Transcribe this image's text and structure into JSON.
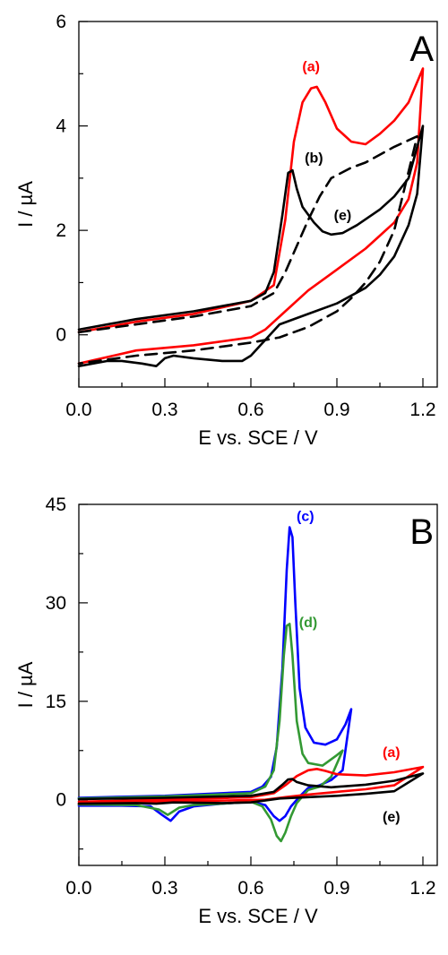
{
  "chart_data": [
    {
      "type": "line",
      "panel_label": "A",
      "xlabel": "E vs. SCE / V",
      "ylabel": "I / µA",
      "xlim": [
        0.0,
        1.25
      ],
      "ylim": [
        -1.0,
        6.0
      ],
      "xticks": [
        0.0,
        0.3,
        0.6,
        0.9,
        1.2
      ],
      "xtick_labels": [
        "0.0",
        "0.3",
        "0.6",
        "0.9",
        "1.2"
      ],
      "yticks": [
        0,
        2,
        4,
        6
      ],
      "ytick_labels": [
        "0",
        "2",
        "4",
        "6"
      ],
      "grid": false,
      "series": [
        {
          "name": "(a)",
          "color": "#ff0000",
          "dash": "solid",
          "x": [
            0.0,
            0.2,
            0.4,
            0.6,
            0.68,
            0.72,
            0.75,
            0.78,
            0.81,
            0.83,
            0.86,
            0.9,
            0.95,
            1.0,
            1.05,
            1.1,
            1.15,
            1.2,
            1.18,
            1.15,
            1.1,
            1.05,
            1.0,
            0.9,
            0.8,
            0.72,
            0.65,
            0.6,
            0.4,
            0.2,
            0.0
          ],
          "y": [
            0.05,
            0.25,
            0.4,
            0.65,
            0.95,
            2.2,
            3.7,
            4.45,
            4.72,
            4.75,
            4.45,
            3.95,
            3.7,
            3.65,
            3.85,
            4.1,
            4.45,
            5.1,
            3.3,
            2.6,
            2.15,
            1.9,
            1.65,
            1.25,
            0.85,
            0.45,
            0.1,
            -0.05,
            -0.2,
            -0.3,
            -0.55
          ]
        },
        {
          "name": "(b)",
          "color": "#000000",
          "dash": "dashed",
          "x": [
            0.0,
            0.2,
            0.4,
            0.6,
            0.68,
            0.72,
            0.76,
            0.8,
            0.84,
            0.88,
            0.95,
            1.0,
            1.1,
            1.18,
            1.1,
            1.05,
            1.0,
            0.95,
            0.9,
            0.85,
            0.8,
            0.75,
            0.7,
            0.6,
            0.4,
            0.2,
            0.0
          ],
          "y": [
            0.05,
            0.2,
            0.35,
            0.55,
            0.8,
            1.2,
            1.7,
            2.2,
            2.65,
            3.0,
            3.2,
            3.3,
            3.6,
            3.8,
            2.0,
            1.4,
            1.0,
            0.7,
            0.45,
            0.3,
            0.15,
            0.05,
            -0.05,
            -0.15,
            -0.3,
            -0.4,
            -0.55
          ]
        },
        {
          "name": "(e)",
          "color": "#000000",
          "dash": "solid",
          "x": [
            0.0,
            0.2,
            0.4,
            0.6,
            0.65,
            0.68,
            0.71,
            0.73,
            0.745,
            0.76,
            0.78,
            0.82,
            0.85,
            0.88,
            0.92,
            0.97,
            1.05,
            1.1,
            1.15,
            1.2,
            1.18,
            1.15,
            1.1,
            1.05,
            1.0,
            0.9,
            0.8,
            0.7,
            0.6,
            0.57,
            0.5,
            0.4,
            0.33,
            0.3,
            0.27,
            0.22,
            0.15,
            0.1,
            0.0
          ],
          "y": [
            0.1,
            0.3,
            0.45,
            0.65,
            0.8,
            1.2,
            2.3,
            3.1,
            3.15,
            2.8,
            2.45,
            2.15,
            1.98,
            1.92,
            1.95,
            2.1,
            2.4,
            2.65,
            3.0,
            4.0,
            2.7,
            2.1,
            1.5,
            1.15,
            0.9,
            0.6,
            0.4,
            0.2,
            -0.4,
            -0.5,
            -0.5,
            -0.45,
            -0.4,
            -0.45,
            -0.6,
            -0.55,
            -0.5,
            -0.5,
            -0.6
          ]
        }
      ],
      "annotations": [
        {
          "text": "(a)",
          "x": 0.81,
          "y": 5.05,
          "color": "#ff0000"
        },
        {
          "text": "(b)",
          "x": 0.82,
          "y": 3.3,
          "color": "#000000"
        },
        {
          "text": "(e)",
          "x": 0.92,
          "y": 2.2,
          "color": "#000000"
        }
      ]
    },
    {
      "type": "line",
      "panel_label": "B",
      "xlabel": "E vs. SCE / V",
      "ylabel": "I / µA",
      "xlim": [
        0.0,
        1.25
      ],
      "ylim": [
        -10.0,
        45.0
      ],
      "xticks": [
        0.0,
        0.3,
        0.6,
        0.9,
        1.2
      ],
      "xtick_labels": [
        "0.0",
        "0.3",
        "0.6",
        "0.9",
        "1.2"
      ],
      "yticks": [
        0,
        15,
        30,
        45
      ],
      "ytick_labels": [
        "0",
        "15",
        "30",
        "45"
      ],
      "grid": false,
      "series": [
        {
          "name": "(c)",
          "color": "#0000ff",
          "dash": "solid",
          "x": [
            0.0,
            0.3,
            0.6,
            0.64,
            0.67,
            0.69,
            0.71,
            0.725,
            0.735,
            0.745,
            0.755,
            0.77,
            0.79,
            0.82,
            0.86,
            0.9,
            0.93,
            0.95,
            0.92,
            0.88,
            0.84,
            0.8,
            0.77,
            0.74,
            0.72,
            0.7,
            0.68,
            0.65,
            0.6,
            0.5,
            0.4,
            0.35,
            0.32,
            0.29,
            0.25,
            0.15,
            0.0
          ],
          "y": [
            0.3,
            0.6,
            1.2,
            2.0,
            3.5,
            8.0,
            20.0,
            35.0,
            41.5,
            40.0,
            30.0,
            17.0,
            11.0,
            8.7,
            8.4,
            9.2,
            11.5,
            13.8,
            4.5,
            3.0,
            2.2,
            1.8,
            0.5,
            -1.0,
            -2.5,
            -3.2,
            -2.5,
            -0.8,
            -0.3,
            -0.6,
            -1.0,
            -1.8,
            -3.2,
            -2.3,
            -1.0,
            -0.9,
            -0.9
          ]
        },
        {
          "name": "(d)",
          "color": "#339933",
          "dash": "solid",
          "x": [
            0.0,
            0.3,
            0.6,
            0.65,
            0.68,
            0.7,
            0.715,
            0.725,
            0.735,
            0.745,
            0.76,
            0.78,
            0.8,
            0.85,
            0.9,
            0.92,
            0.88,
            0.84,
            0.8,
            0.76,
            0.74,
            0.72,
            0.705,
            0.69,
            0.67,
            0.64,
            0.6,
            0.5,
            0.4,
            0.35,
            0.31,
            0.28,
            0.2,
            0.0
          ],
          "y": [
            0.2,
            0.5,
            1.0,
            2.0,
            4.5,
            12.0,
            22.0,
            26.5,
            26.8,
            22.0,
            12.0,
            7.0,
            5.6,
            5.2,
            6.8,
            7.5,
            3.5,
            2.0,
            1.5,
            -0.5,
            -2.5,
            -5.0,
            -6.3,
            -5.5,
            -3.0,
            -1.0,
            -0.3,
            -0.6,
            -0.8,
            -1.2,
            -2.3,
            -1.5,
            -0.8,
            -0.7
          ]
        },
        {
          "name": "(a)",
          "color": "#ff0000",
          "dash": "solid",
          "x": [
            0.0,
            0.3,
            0.6,
            0.68,
            0.72,
            0.76,
            0.8,
            0.83,
            0.86,
            0.9,
            1.0,
            1.1,
            1.2,
            1.1,
            1.0,
            0.9,
            0.8,
            0.72,
            0.65,
            0.3,
            0.0
          ],
          "y": [
            -0.3,
            0.0,
            0.4,
            1.0,
            2.2,
            3.6,
            4.5,
            4.7,
            4.4,
            3.9,
            3.7,
            4.2,
            5.0,
            2.2,
            1.6,
            1.2,
            0.8,
            0.4,
            0.0,
            -0.3,
            -0.6
          ]
        },
        {
          "name": "(e)",
          "color": "#000000",
          "dash": "solid",
          "x": [
            0.0,
            0.3,
            0.6,
            0.68,
            0.71,
            0.73,
            0.745,
            0.76,
            0.8,
            0.88,
            1.0,
            1.1,
            1.2,
            1.1,
            1.0,
            0.9,
            0.8,
            0.7,
            0.6,
            0.5,
            0.33,
            0.27,
            0.2,
            0.0
          ],
          "y": [
            0.1,
            0.3,
            0.6,
            1.2,
            2.3,
            3.1,
            3.15,
            2.7,
            2.2,
            1.9,
            2.3,
            2.9,
            4.0,
            1.3,
            0.9,
            0.6,
            0.4,
            0.2,
            -0.4,
            -0.5,
            -0.4,
            -0.6,
            -0.5,
            -0.6
          ]
        }
      ],
      "annotations": [
        {
          "text": "(c)",
          "x": 0.79,
          "y": 42.5,
          "color": "#0000ff"
        },
        {
          "text": "(d)",
          "x": 0.8,
          "y": 26.3,
          "color": "#339933"
        },
        {
          "text": "(a)",
          "x": 1.09,
          "y": 6.5,
          "color": "#ff0000"
        },
        {
          "text": "(e)",
          "x": 1.09,
          "y": -3.3,
          "color": "#000000"
        }
      ]
    }
  ]
}
